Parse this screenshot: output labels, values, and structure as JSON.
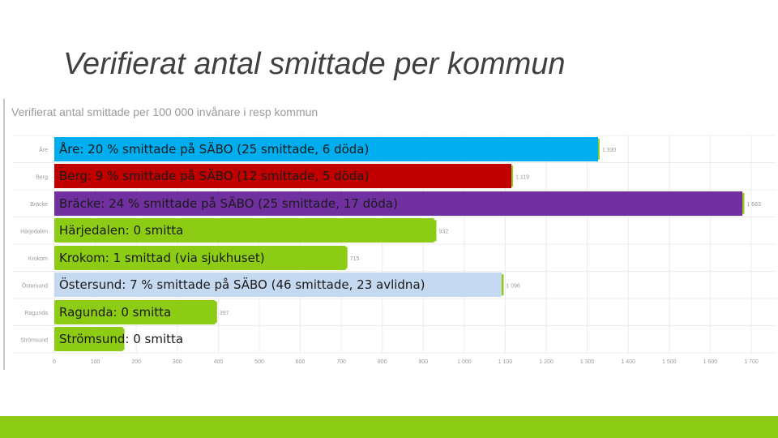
{
  "slide": {
    "title": "Verifierat antal smittade per kommun",
    "bottom_bar_color": "#8ccc14"
  },
  "chart_data": {
    "type": "bar",
    "orientation": "horizontal",
    "title": "Verifierat antal smittade per 100 000 invånare i resp kommun",
    "categories": [
      "Åre",
      "Berg",
      "Bräcke",
      "Härjedalen",
      "Krokom",
      "Östersund",
      "Ragunda",
      "Strömsund"
    ],
    "values": [
      1330,
      1119,
      1683,
      932,
      715,
      1096,
      397,
      171
    ],
    "value_labels": [
      "1 330",
      "1 119",
      "1 683",
      "932",
      "715",
      "1 096",
      "397",
      ""
    ],
    "xlim": [
      0,
      1700
    ],
    "xticks": [
      0,
      100,
      200,
      300,
      400,
      500,
      600,
      700,
      800,
      900,
      1000,
      1100,
      1200,
      1300,
      1400,
      1500,
      1600,
      1700
    ],
    "xtick_labels": [
      "0",
      "100",
      "200",
      "300",
      "400",
      "500",
      "600",
      "700",
      "800",
      "900",
      "1 000",
      "1 100",
      "1 200",
      "1 300",
      "1 400",
      "1 500",
      "1 600",
      "1 700"
    ],
    "grid": true,
    "bar_color": "#8ccc14",
    "callouts": [
      {
        "text": "Åre: 20 % smittade på SÄBO (25 smittade, 6 döda)",
        "color": "#00aeef",
        "value": 1330
      },
      {
        "text": "Berg: 9 % smittade på SÄBO (12 smittade, 5 döda)",
        "color": "#c00000",
        "value": 1119
      },
      {
        "text": "Bräcke: 24 % smittade på SÄBO (25 smittade, 17 döda)",
        "color": "#7030a0",
        "value": 1683
      },
      {
        "text": "Härjedalen: 0 smitta",
        "color": "#8ccc14",
        "value": 932
      },
      {
        "text": "Krokom: 1 smittad (via sjukhuset)",
        "color": "#8ccc14",
        "value": 715
      },
      {
        "text": "Östersund: 7 % smittade på SÄBO (46 smittade, 23 avlidna)",
        "color": "#c5d9f1",
        "value": 1096
      },
      {
        "text": "Ragunda: 0 smitta",
        "color": "#8ccc14",
        "value": 397
      },
      {
        "text": "Strömsund: 0 smitta",
        "color": "#8ccc14",
        "value": 171
      }
    ]
  }
}
